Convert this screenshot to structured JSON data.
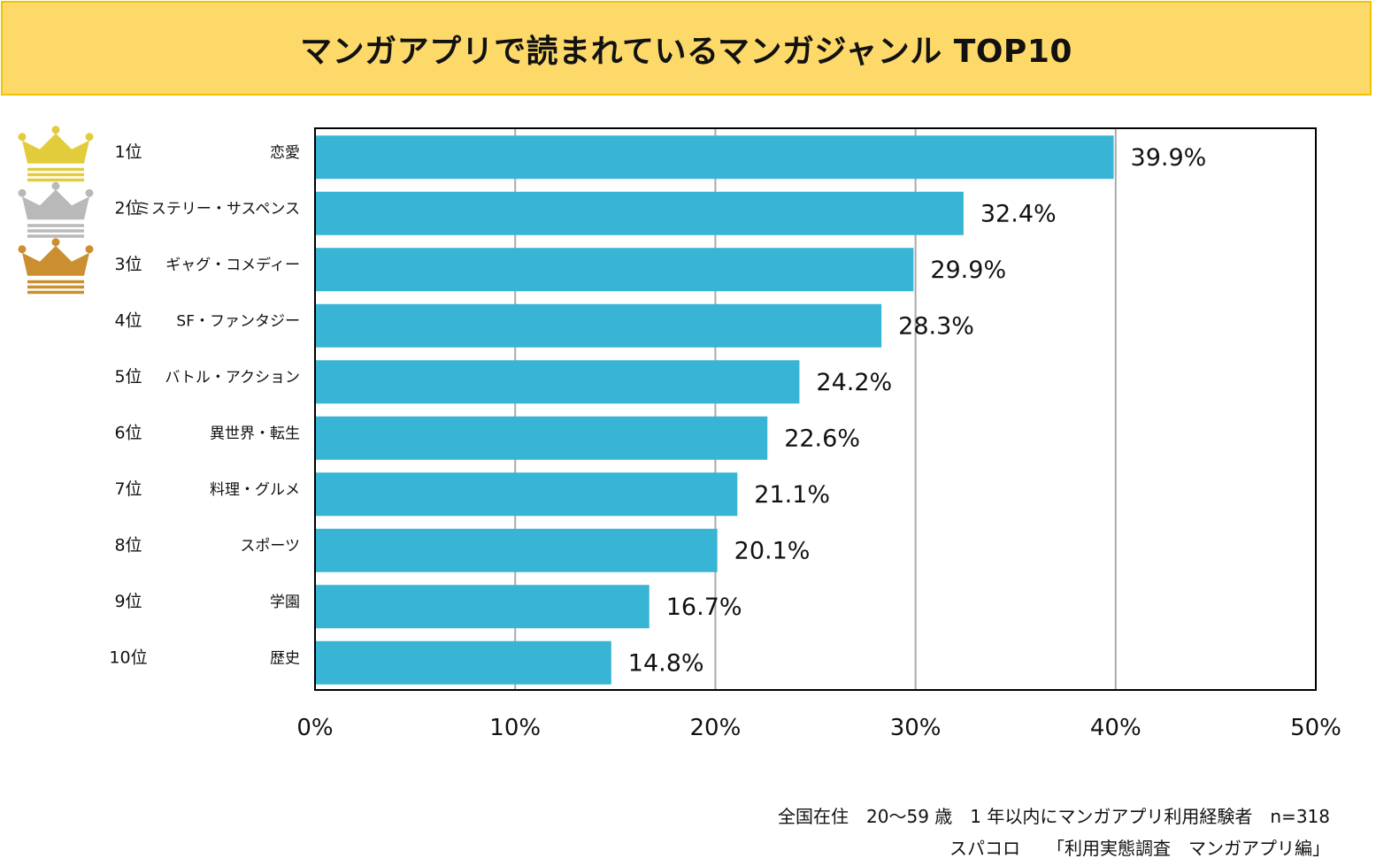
{
  "title": "マンガアプリで読まれているマンガジャンル TOP10",
  "colors": {
    "bar": "#38b4d4",
    "banner": "#fdd96a",
    "banner_border": "#f2c400",
    "gold": "#e2cc3c",
    "silver": "#b9b9b9",
    "bronze": "#cc8f30"
  },
  "crown_icons": [
    "gold-crown-icon",
    "silver-crown-icon",
    "bronze-crown-icon"
  ],
  "chart_data": {
    "type": "bar",
    "orientation": "horizontal",
    "title": "マンガアプリで読まれているマンガジャンル TOP10",
    "ranks": [
      "1位",
      "2位",
      "3位",
      "4位",
      "5位",
      "6位",
      "7位",
      "8位",
      "9位",
      "10位"
    ],
    "categories": [
      "恋愛",
      "ミステリー・サスペンス",
      "ギャグ・コメディー",
      "SF・ファンタジー",
      "バトル・アクション",
      "異世界・転生",
      "料理・グルメ",
      "スポーツ",
      "学園",
      "歴史"
    ],
    "values": [
      39.9,
      32.4,
      29.9,
      28.3,
      24.2,
      22.6,
      21.1,
      20.1,
      16.7,
      14.8
    ],
    "value_labels": [
      "39.9%",
      "32.4%",
      "29.9%",
      "28.3%",
      "24.2%",
      "22.6%",
      "21.1%",
      "20.1%",
      "16.7%",
      "14.8%"
    ],
    "xlim": [
      0,
      50
    ],
    "xticks": [
      0,
      10,
      20,
      30,
      40,
      50
    ],
    "xtick_labels": [
      "0%",
      "10%",
      "20%",
      "30%",
      "40%",
      "50%"
    ],
    "grid": true,
    "xlabel": "",
    "ylabel": ""
  },
  "footnote": {
    "line1": "全国在住　20～59 歳　1 年以内にマンガアプリ利用経験者　n=318",
    "line2": "スパコロ　　「利用実態調査　マンガアプリ編」"
  }
}
